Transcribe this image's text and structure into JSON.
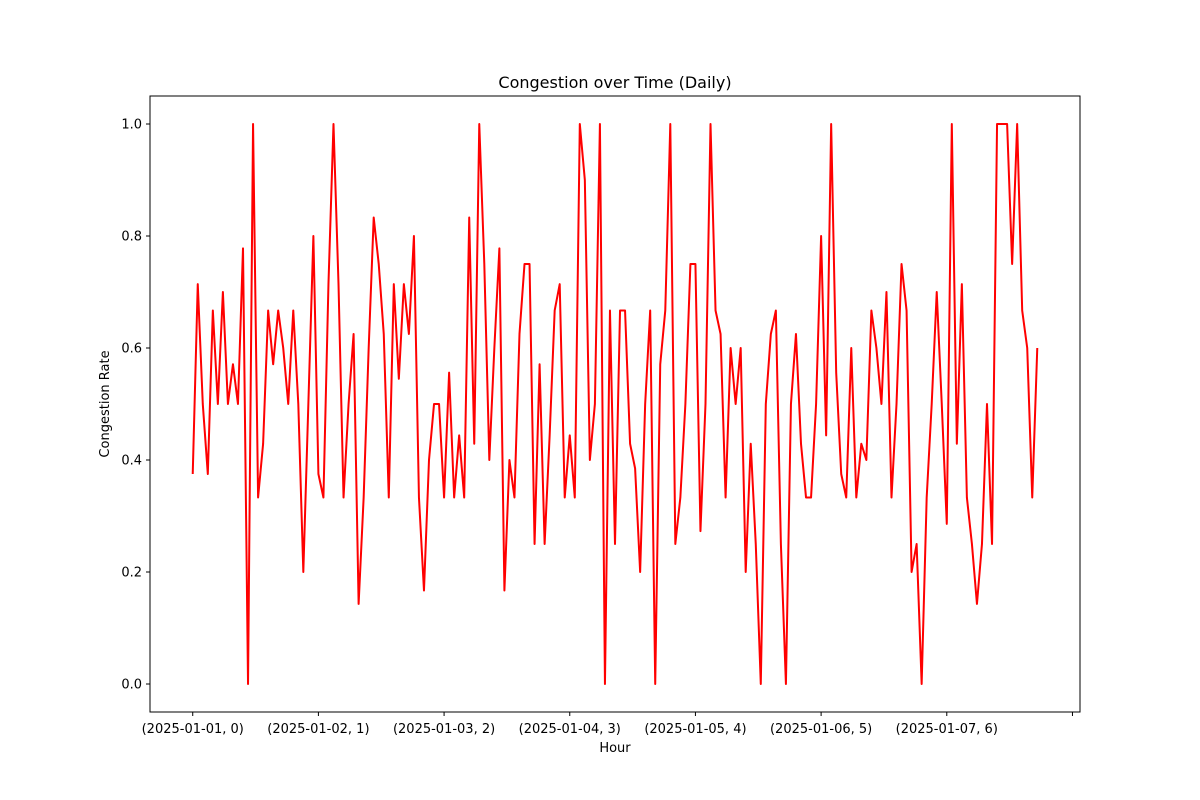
{
  "chart_data": {
    "type": "line",
    "title": "Congestion over Time (Daily)",
    "xlabel": "Hour",
    "ylabel": "Congestion Rate",
    "ylim": [
      -0.05,
      1.05
    ],
    "y_ticks": [
      0.0,
      0.2,
      0.4,
      0.6,
      0.8,
      1.0
    ],
    "y_tick_labels": [
      "0.0",
      "0.2",
      "0.4",
      "0.6",
      "0.8",
      "1.0"
    ],
    "x_tick_labels": [
      "(2025-01-01, 0)",
      "(2025-01-02, 1)",
      "(2025-01-03, 2)",
      "(2025-01-04, 3)",
      "(2025-01-05, 4)",
      "(2025-01-06, 5)",
      "(2025-01-07, 6)",
      ""
    ],
    "x_tick_positions": [
      0,
      25,
      50,
      75,
      100,
      125,
      150,
      175
    ],
    "x_range": [
      -8.5,
      176.5
    ],
    "grid": false,
    "series": [
      {
        "color": "#ff0000",
        "values": [
          0.375,
          0.714,
          0.5,
          0.375,
          0.667,
          0.5,
          0.7,
          0.5,
          0.571,
          0.5,
          0.778,
          0.0,
          1.0,
          0.333,
          0.429,
          0.667,
          0.571,
          0.667,
          0.6,
          0.5,
          0.667,
          0.5,
          0.2,
          0.5,
          0.8,
          0.375,
          0.333,
          0.714,
          1.0,
          0.714,
          0.333,
          0.5,
          0.625,
          0.143,
          0.333,
          0.6,
          0.833,
          0.75,
          0.625,
          0.333,
          0.714,
          0.545,
          0.714,
          0.625,
          0.8,
          0.333,
          0.167,
          0.4,
          0.5,
          0.5,
          0.333,
          0.556,
          0.333,
          0.444,
          0.333,
          0.833,
          0.429,
          1.0,
          0.75,
          0.4,
          0.6,
          0.778,
          0.167,
          0.4,
          0.333,
          0.625,
          0.75,
          0.75,
          0.25,
          0.571,
          0.25,
          0.444,
          0.667,
          0.714,
          0.333,
          0.444,
          0.333,
          1.0,
          0.9,
          0.4,
          0.5,
          1.0,
          0.0,
          0.667,
          0.25,
          0.667,
          0.667,
          0.429,
          0.385,
          0.2,
          0.5,
          0.667,
          0.0,
          0.571,
          0.667,
          1.0,
          0.25,
          0.333,
          0.5,
          0.75,
          0.75,
          0.273,
          0.5,
          1.0,
          0.667,
          0.625,
          0.333,
          0.6,
          0.5,
          0.6,
          0.2,
          0.429,
          0.25,
          0.0,
          0.5,
          0.625,
          0.667,
          0.25,
          0.0,
          0.5,
          0.625,
          0.429,
          0.333,
          0.333,
          0.5,
          0.8,
          0.444,
          1.0,
          0.556,
          0.375,
          0.333,
          0.6,
          0.333,
          0.429,
          0.4,
          0.667,
          0.6,
          0.5,
          0.7,
          0.333,
          0.5,
          0.75,
          0.667,
          0.2,
          0.25,
          0.0,
          0.333,
          0.5,
          0.7,
          0.5,
          0.286,
          1.0,
          0.429,
          0.714,
          0.333,
          0.25,
          0.143,
          0.25,
          0.5,
          0.25,
          1.0,
          1.0,
          1.0,
          0.75,
          1.0,
          0.667,
          0.6,
          0.333,
          0.6
        ]
      }
    ]
  }
}
